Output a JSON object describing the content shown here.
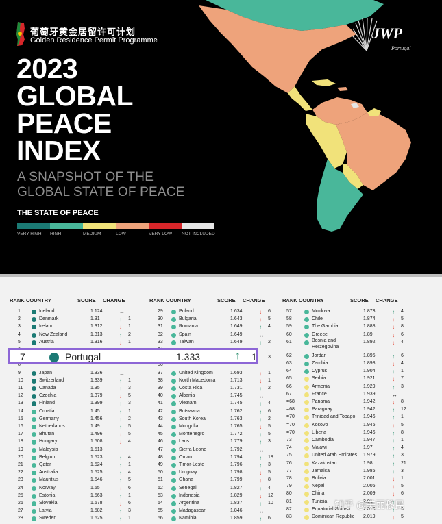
{
  "header": {
    "cn_title": "葡萄牙黄金居留许可计划",
    "en_title": "Golden Residence Permit Programme",
    "title_lines": [
      "2023",
      "GLOBAL",
      "PEACE",
      "INDEX"
    ],
    "subtitle_lines": [
      "A SNAPSHOT OF THE",
      "GLOBAL STATE OF PEACE"
    ],
    "brand_text": "JWP",
    "brand_sub": "Portugal"
  },
  "legend": {
    "title": "THE STATE OF PEACE",
    "items": [
      {
        "label": "VERY HIGH",
        "color": "#1b7a74"
      },
      {
        "label": "HIGH",
        "color": "#49b79a"
      },
      {
        "label": "MEDIUM",
        "color": "#f1e27a"
      },
      {
        "label": "LOW",
        "color": "#eea37b"
      },
      {
        "label": "VERY LOW",
        "color": "#d7262a"
      },
      {
        "label": "NOT INCLUDED",
        "color": "#e5e5e5"
      }
    ]
  },
  "table": {
    "headers": [
      "RANK",
      "COUNTRY",
      "SCORE",
      "CHANGE"
    ],
    "col1": [
      {
        "rank": "1",
        "country": "Iceland",
        "score": "1.124",
        "dir": "same",
        "chg": "",
        "color": "#1b7a74"
      },
      {
        "rank": "2",
        "country": "Denmark",
        "score": "1.31",
        "dir": "up",
        "chg": "1",
        "color": "#1b7a74"
      },
      {
        "rank": "3",
        "country": "Ireland",
        "score": "1.312",
        "dir": "down",
        "chg": "1",
        "color": "#1b7a74"
      },
      {
        "rank": "4",
        "country": "New Zealand",
        "score": "1.313",
        "dir": "up",
        "chg": "2",
        "color": "#1b7a74"
      },
      {
        "rank": "5",
        "country": "Austria",
        "score": "1.316",
        "dir": "down",
        "chg": "1",
        "color": "#1b7a74"
      },
      {
        "rank": "6",
        "country": "",
        "score": "",
        "dir": "",
        "chg": "",
        "color": "#1b7a74"
      },
      {
        "rank": "7",
        "country": "",
        "score": "",
        "dir": "",
        "chg": "",
        "color": "#1b7a74"
      },
      {
        "rank": "8",
        "country": "",
        "score": "",
        "dir": "",
        "chg": "",
        "color": "#1b7a74"
      },
      {
        "rank": "9",
        "country": "Japan",
        "score": "1.336",
        "dir": "same",
        "chg": "",
        "color": "#1b7a74"
      },
      {
        "rank": "10",
        "country": "Switzerland",
        "score": "1.339",
        "dir": "up",
        "chg": "1",
        "color": "#1b7a74"
      },
      {
        "rank": "11",
        "country": "Canada",
        "score": "1.35",
        "dir": "up",
        "chg": "3",
        "color": "#1b7a74"
      },
      {
        "rank": "12",
        "country": "Czechia",
        "score": "1.379",
        "dir": "down",
        "chg": "5",
        "color": "#1b7a74"
      },
      {
        "rank": "13",
        "country": "Finland",
        "score": "1.399",
        "dir": "up",
        "chg": "3",
        "color": "#1b7a74"
      },
      {
        "rank": "14",
        "country": "Croatia",
        "score": "1.45",
        "dir": "up",
        "chg": "1",
        "color": "#49b79a"
      },
      {
        "rank": "15",
        "country": "Germany",
        "score": "1.456",
        "dir": "up",
        "chg": "2",
        "color": "#49b79a"
      },
      {
        "rank": "16",
        "country": "Netherlands",
        "score": "1.49",
        "dir": "up",
        "chg": "5",
        "color": "#49b79a"
      },
      {
        "rank": "17",
        "country": "Bhutan",
        "score": "1.496",
        "dir": "down",
        "chg": "5",
        "color": "#49b79a"
      },
      {
        "rank": "18",
        "country": "Hungary",
        "score": "1.508",
        "dir": "down",
        "chg": "4",
        "color": "#49b79a"
      },
      {
        "rank": "19",
        "country": "Malaysia",
        "score": "1.513",
        "dir": "same",
        "chg": "",
        "color": "#49b79a"
      },
      {
        "rank": "20",
        "country": "Belgium",
        "score": "1.523",
        "dir": "up",
        "chg": "4",
        "color": "#49b79a"
      },
      {
        "rank": "21",
        "country": "Qatar",
        "score": "1.524",
        "dir": "up",
        "chg": "1",
        "color": "#49b79a"
      },
      {
        "rank": "22",
        "country": "Australia",
        "score": "1.525",
        "dir": "up",
        "chg": "4",
        "color": "#49b79a"
      },
      {
        "rank": "23",
        "country": "Mauritius",
        "score": "1.546",
        "dir": "up",
        "chg": "5",
        "color": "#49b79a"
      },
      {
        "rank": "24",
        "country": "Norway",
        "score": "1.55",
        "dir": "down",
        "chg": "6",
        "color": "#49b79a"
      },
      {
        "rank": "25",
        "country": "Estonia",
        "score": "1.563",
        "dir": "up",
        "chg": "1",
        "color": "#49b79a"
      },
      {
        "rank": "26",
        "country": "Slovakia",
        "score": "1.578",
        "dir": "down",
        "chg": "6",
        "color": "#49b79a"
      },
      {
        "rank": "27",
        "country": "Latvia",
        "score": "1.582",
        "dir": "up",
        "chg": "3",
        "color": "#49b79a"
      },
      {
        "rank": "28",
        "country": "Sweden",
        "score": "1.625",
        "dir": "up",
        "chg": "1",
        "color": "#49b79a"
      }
    ],
    "col2": [
      {
        "rank": "29",
        "country": "Poland",
        "score": "1.634",
        "dir": "down",
        "chg": "6",
        "color": "#49b79a"
      },
      {
        "rank": "30",
        "country": "Bulgaria",
        "score": "1.643",
        "dir": "down",
        "chg": "5",
        "color": "#49b79a"
      },
      {
        "rank": "31",
        "country": "Romania",
        "score": "1.649",
        "dir": "up",
        "chg": "4",
        "color": "#49b79a"
      },
      {
        "rank": "32",
        "country": "Spain",
        "score": "1.649",
        "dir": "same",
        "chg": "",
        "color": "#49b79a"
      },
      {
        "rank": "33",
        "country": "Taiwan",
        "score": "1.649",
        "dir": "up",
        "chg": "2",
        "color": "#49b79a"
      },
      {
        "rank": "34",
        "country": "",
        "score": "",
        "dir": "",
        "chg": "",
        "color": "#49b79a"
      },
      {
        "rank": "35",
        "country": "",
        "score": "",
        "dir": "",
        "chg": "3",
        "color": "#49b79a"
      },
      {
        "rank": "36",
        "country": "",
        "score": "",
        "dir": "",
        "chg": "",
        "color": "#49b79a"
      },
      {
        "rank": "37",
        "country": "United Kingdom",
        "score": "1.693",
        "dir": "down",
        "chg": "1",
        "color": "#49b79a"
      },
      {
        "rank": "38",
        "country": "North Macedonia",
        "score": "1.713",
        "dir": "down",
        "chg": "1",
        "color": "#49b79a"
      },
      {
        "rank": "39",
        "country": "Costa Rica",
        "score": "1.731",
        "dir": "up",
        "chg": "2",
        "color": "#49b79a"
      },
      {
        "rank": "40",
        "country": "Albania",
        "score": "1.745",
        "dir": "same",
        "chg": "",
        "color": "#49b79a"
      },
      {
        "rank": "41",
        "country": "Vietnam",
        "score": "1.745",
        "dir": "up",
        "chg": "4",
        "color": "#49b79a"
      },
      {
        "rank": "42",
        "country": "Botswana",
        "score": "1.762",
        "dir": "up",
        "chg": "6",
        "color": "#49b79a"
      },
      {
        "rank": "43",
        "country": "South Korea",
        "score": "1.763",
        "dir": "up",
        "chg": "2",
        "color": "#49b79a"
      },
      {
        "rank": "44",
        "country": "Mongolia",
        "score": "1.765",
        "dir": "down",
        "chg": "5",
        "color": "#49b79a"
      },
      {
        "rank": "45",
        "country": "Montenegro",
        "score": "1.772",
        "dir": "up",
        "chg": "5",
        "color": "#49b79a"
      },
      {
        "rank": "46",
        "country": "Laos",
        "score": "1.779",
        "dir": "up",
        "chg": "3",
        "color": "#49b79a"
      },
      {
        "rank": "47",
        "country": "Sierra Leone",
        "score": "1.792",
        "dir": "same",
        "chg": "",
        "color": "#49b79a"
      },
      {
        "rank": "48",
        "country": "Oman",
        "score": "1.794",
        "dir": "up",
        "chg": "18",
        "color": "#49b79a"
      },
      {
        "rank": "49",
        "country": "Timor-Leste",
        "score": "1.796",
        "dir": "up",
        "chg": "3",
        "color": "#49b79a"
      },
      {
        "rank": "50",
        "country": "Uruguay",
        "score": "1.798",
        "dir": "down",
        "chg": "5",
        "color": "#49b79a"
      },
      {
        "rank": "51",
        "country": "Ghana",
        "score": "1.799",
        "dir": "down",
        "chg": "8",
        "color": "#49b79a"
      },
      {
        "rank": "52",
        "country": "Senegal",
        "score": "1.827",
        "dir": "up",
        "chg": "4",
        "color": "#49b79a"
      },
      {
        "rank": "53",
        "country": "Indonesia",
        "score": "1.829",
        "dir": "down",
        "chg": "12",
        "color": "#49b79a"
      },
      {
        "rank": "54",
        "country": "Argentina",
        "score": "1.837",
        "dir": "up",
        "chg": "10",
        "color": "#49b79a"
      },
      {
        "rank": "55",
        "country": "Madagascar",
        "score": "1.846",
        "dir": "same",
        "chg": "",
        "color": "#49b79a"
      },
      {
        "rank": "56",
        "country": "Namibia",
        "score": "1.859",
        "dir": "up",
        "chg": "6",
        "color": "#49b79a"
      }
    ],
    "col3": [
      {
        "rank": "57",
        "country": "Moldova",
        "score": "1.873",
        "dir": "up",
        "chg": "4",
        "color": "#49b79a"
      },
      {
        "rank": "58",
        "country": "Chile",
        "score": "1.874",
        "dir": "down",
        "chg": "5",
        "color": "#49b79a"
      },
      {
        "rank": "59",
        "country": "The Gambia",
        "score": "1.888",
        "dir": "down",
        "chg": "8",
        "color": "#49b79a"
      },
      {
        "rank": "60",
        "country": "Greece",
        "score": "1.89",
        "dir": "down",
        "chg": "6",
        "color": "#49b79a"
      },
      {
        "rank": "61",
        "country": "Bosnia and Herzegovina",
        "score": "1.892",
        "dir": "down",
        "chg": "4",
        "color": "#49b79a"
      },
      {
        "rank": "62",
        "country": "Jordan",
        "score": "1.895",
        "dir": "up",
        "chg": "6",
        "color": "#49b79a"
      },
      {
        "rank": "63",
        "country": "Zambia",
        "score": "1.898",
        "dir": "down",
        "chg": "4",
        "color": "#49b79a"
      },
      {
        "rank": "64",
        "country": "Cyprus",
        "score": "1.904",
        "dir": "up",
        "chg": "1",
        "color": "#49b79a"
      },
      {
        "rank": "65",
        "country": "Serbia",
        "score": "1.921",
        "dir": "down",
        "chg": "7",
        "color": "#f1e27a"
      },
      {
        "rank": "66",
        "country": "Armenia",
        "score": "1.929",
        "dir": "up",
        "chg": "3",
        "color": "#f1e27a"
      },
      {
        "rank": "67",
        "country": "France",
        "score": "1.939",
        "dir": "same",
        "chg": "",
        "color": "#f1e27a"
      },
      {
        "rank": "=68",
        "country": "Panama",
        "score": "1.942",
        "dir": "down",
        "chg": "8",
        "color": "#f1e27a"
      },
      {
        "rank": "=68",
        "country": "Paraguay",
        "score": "1.942",
        "dir": "up",
        "chg": "12",
        "color": "#f1e27a"
      },
      {
        "rank": "=70",
        "country": "Trinidad and Tobago",
        "score": "1.946",
        "dir": "up",
        "chg": "1",
        "color": "#f1e27a"
      },
      {
        "rank": "=70",
        "country": "Kosovo",
        "score": "1.946",
        "dir": "down",
        "chg": "5",
        "color": "#f1e27a"
      },
      {
        "rank": "=70",
        "country": "Liberia",
        "score": "1.946",
        "dir": "up",
        "chg": "8",
        "color": "#f1e27a"
      },
      {
        "rank": "73",
        "country": "Cambodia",
        "score": "1.947",
        "dir": "up",
        "chg": "1",
        "color": "#f1e27a"
      },
      {
        "rank": "74",
        "country": "Malawi",
        "score": "1.97",
        "dir": "up",
        "chg": "4",
        "color": "#f1e27a"
      },
      {
        "rank": "75",
        "country": "United Arab Emirates",
        "score": "1.979",
        "dir": "up",
        "chg": "3",
        "color": "#f1e27a"
      },
      {
        "rank": "76",
        "country": "Kazakhstan",
        "score": "1.98",
        "dir": "up",
        "chg": "21",
        "color": "#f1e27a"
      },
      {
        "rank": "77",
        "country": "Jamaica",
        "score": "1.986",
        "dir": "up",
        "chg": "3",
        "color": "#f1e27a"
      },
      {
        "rank": "78",
        "country": "Bolivia",
        "score": "2.001",
        "dir": "down",
        "chg": "1",
        "color": "#f1e27a"
      },
      {
        "rank": "79",
        "country": "Nepal",
        "score": "2.006",
        "dir": "down",
        "chg": "5",
        "color": "#f1e27a"
      },
      {
        "rank": "80",
        "country": "China",
        "score": "2.009",
        "dir": "down",
        "chg": "6",
        "color": "#f1e27a"
      },
      {
        "rank": "81",
        "country": "Tunisia",
        "score": "2.01",
        "dir": "up",
        "chg": "",
        "color": "#f1e27a"
      },
      {
        "rank": "82",
        "country": "Equatorial Guinea",
        "score": "2.013",
        "dir": "up",
        "chg": "9",
        "color": "#f1e27a"
      },
      {
        "rank": "83",
        "country": "Dominican Republic",
        "score": "2.019",
        "dir": "down",
        "chg": "5",
        "color": "#f1e27a"
      }
    ]
  },
  "highlight": {
    "rank": "7",
    "country": "Portugal",
    "score": "1.333",
    "dir": "up",
    "chg": "1",
    "color": "#1b7a74"
  },
  "watermark": "知乎 @美丽移民"
}
